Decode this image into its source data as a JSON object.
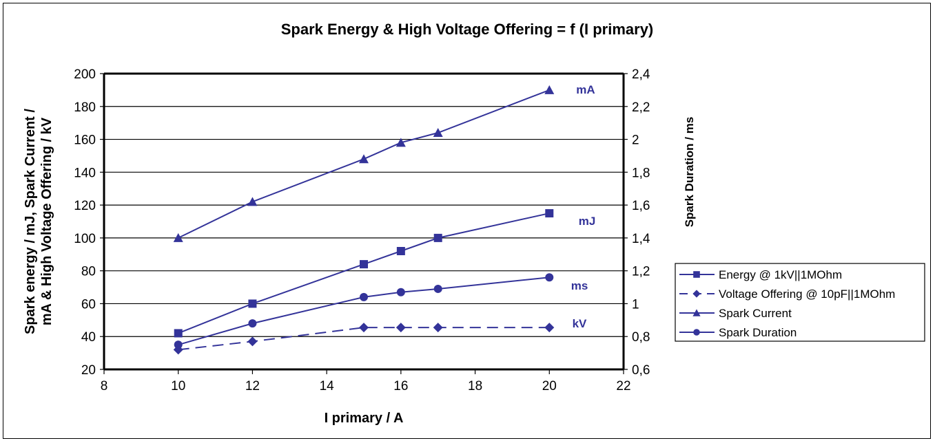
{
  "chart_data": {
    "type": "line",
    "title": "Spark Energy & High Voltage Offering = f (I primary)",
    "xlabel": "I primary / A",
    "ylabel_left": "Spark energy / mJ, Spark Current / mA & High Voltage Offering / kV",
    "ylabel_left_lines": [
      "Spark energy / mJ, Spark Current /",
      "mA & High Voltage Offering / kV"
    ],
    "ylabel_right": "Spark Duration / ms",
    "xlim": [
      8,
      22
    ],
    "ylim_left": [
      20,
      200
    ],
    "ylim_right": [
      0.6,
      2.4
    ],
    "x_ticks": [
      "8",
      "10",
      "12",
      "14",
      "16",
      "18",
      "20",
      "22"
    ],
    "y_ticks_left": [
      "20",
      "40",
      "60",
      "80",
      "100",
      "120",
      "140",
      "160",
      "180",
      "200"
    ],
    "y_ticks_right": [
      "0,6",
      "0,8",
      "1",
      "1,2",
      "1,4",
      "1,6",
      "1,8",
      "2",
      "2,2",
      "2,4"
    ],
    "grid": "horizontal",
    "legend_position": "right",
    "series": [
      {
        "name": "Energy @ 1kV||1MOhm",
        "axis": "left",
        "marker": "square",
        "dash": false,
        "label": "mJ",
        "x": [
          10,
          12,
          15,
          16,
          17,
          20
        ],
        "y": [
          42,
          60,
          84,
          92,
          100,
          115
        ]
      },
      {
        "name": "Voltage Offering @ 10pF||1MOhm",
        "axis": "left",
        "marker": "diamond",
        "dash": true,
        "label": "kV",
        "x": [
          10,
          12,
          15,
          16,
          17,
          20
        ],
        "y": [
          32,
          37,
          45.5,
          45.5,
          45.5,
          45.5
        ]
      },
      {
        "name": "Spark Current",
        "axis": "left",
        "marker": "triangle",
        "dash": false,
        "label": "mA",
        "x": [
          10,
          12,
          15,
          16,
          17,
          20
        ],
        "y": [
          100,
          122,
          148,
          158,
          164,
          190
        ]
      },
      {
        "name": "Spark Duration",
        "axis": "right",
        "marker": "circle",
        "dash": false,
        "label": "ms",
        "x": [
          10,
          12,
          15,
          16,
          17,
          20
        ],
        "y": [
          0.75,
          0.88,
          1.04,
          1.07,
          1.09,
          1.16
        ]
      }
    ],
    "colors": {
      "series": "#333399",
      "axis": "#000000",
      "grid": "#000000"
    }
  }
}
